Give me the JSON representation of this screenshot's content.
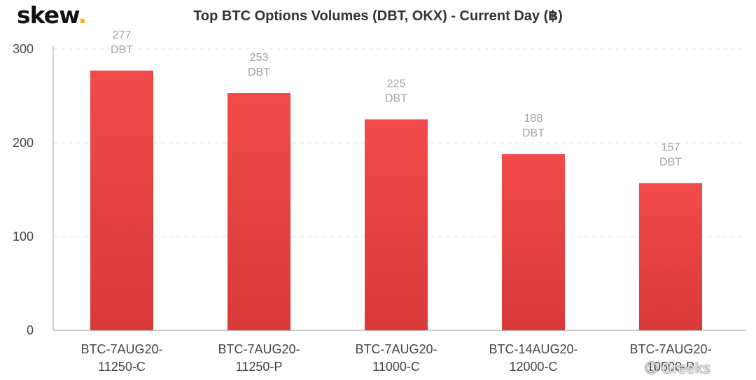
{
  "logo": {
    "text": "skew",
    "dot": "."
  },
  "watermark": {
    "text": "Greeks",
    "icon": "wechat-icon"
  },
  "colors": {
    "bar_top": "#f24a4a",
    "bar_bottom": "#d83a3a",
    "grid": "#e2e2e2",
    "axis": "#aaaaaa",
    "logo_dot": "#f2b705"
  },
  "chart_data": {
    "type": "bar",
    "title": "Top BTC Options Volumes (DBT, OKX) - Current Day (฿)",
    "categories": [
      [
        "BTC-7AUG20-",
        "11250-C"
      ],
      [
        "BTC-7AUG20-",
        "11250-P"
      ],
      [
        "BTC-7AUG20-",
        "11000-C"
      ],
      [
        "BTC-14AUG20-",
        "12000-C"
      ],
      [
        "BTC-7AUG20-",
        "10500-P"
      ]
    ],
    "values": [
      277,
      253,
      225,
      188,
      157
    ],
    "value_unit": "DBT",
    "yticks": [
      0,
      100,
      200,
      300
    ],
    "ylim": [
      0,
      300
    ],
    "xlabel": "",
    "ylabel": "",
    "grid": true,
    "legend": "none"
  }
}
